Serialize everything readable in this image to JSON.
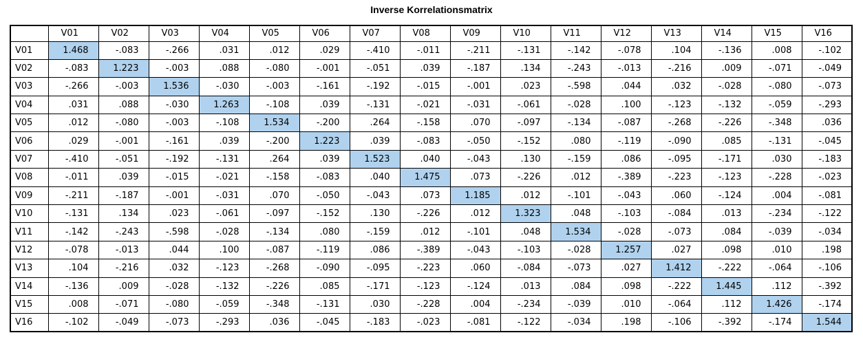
{
  "title": "Inverse Korrelationsmatrix",
  "colors": {
    "diagonal_highlight": "#b0d2ee",
    "border": "#000000",
    "background": "#ffffff"
  },
  "variables": [
    "V01",
    "V02",
    "V03",
    "V04",
    "V05",
    "V06",
    "V07",
    "V08",
    "V09",
    "V10",
    "V11",
    "V12",
    "V13",
    "V14",
    "V15",
    "V16"
  ],
  "rows": [
    [
      "1.468",
      "-.083",
      "-.266",
      ".031",
      ".012",
      ".029",
      "-.410",
      "-.011",
      "-.211",
      "-.131",
      "-.142",
      "-.078",
      ".104",
      "-.136",
      ".008",
      "-.102"
    ],
    [
      "-.083",
      "1.223",
      "-.003",
      ".088",
      "-.080",
      "-.001",
      "-.051",
      ".039",
      "-.187",
      ".134",
      "-.243",
      "-.013",
      "-.216",
      ".009",
      "-.071",
      "-.049"
    ],
    [
      "-.266",
      "-.003",
      "1.536",
      "-.030",
      "-.003",
      "-.161",
      "-.192",
      "-.015",
      "-.001",
      ".023",
      "-.598",
      ".044",
      ".032",
      "-.028",
      "-.080",
      "-.073"
    ],
    [
      ".031",
      ".088",
      "-.030",
      "1.263",
      "-.108",
      ".039",
      "-.131",
      "-.021",
      "-.031",
      "-.061",
      "-.028",
      ".100",
      "-.123",
      "-.132",
      "-.059",
      "-.293"
    ],
    [
      ".012",
      "-.080",
      "-.003",
      "-.108",
      "1.534",
      "-.200",
      ".264",
      "-.158",
      ".070",
      "-.097",
      "-.134",
      "-.087",
      "-.268",
      "-.226",
      "-.348",
      ".036"
    ],
    [
      ".029",
      "-.001",
      "-.161",
      ".039",
      "-.200",
      "1.223",
      ".039",
      "-.083",
      "-.050",
      "-.152",
      ".080",
      "-.119",
      "-.090",
      ".085",
      "-.131",
      "-.045"
    ],
    [
      "-.410",
      "-.051",
      "-.192",
      "-.131",
      ".264",
      ".039",
      "1.523",
      ".040",
      "-.043",
      ".130",
      "-.159",
      ".086",
      "-.095",
      "-.171",
      ".030",
      "-.183"
    ],
    [
      "-.011",
      ".039",
      "-.015",
      "-.021",
      "-.158",
      "-.083",
      ".040",
      "1.475",
      ".073",
      "-.226",
      ".012",
      "-.389",
      "-.223",
      "-.123",
      "-.228",
      "-.023"
    ],
    [
      "-.211",
      "-.187",
      "-.001",
      "-.031",
      ".070",
      "-.050",
      "-.043",
      ".073",
      "1.185",
      ".012",
      "-.101",
      "-.043",
      ".060",
      "-.124",
      ".004",
      "-.081"
    ],
    [
      "-.131",
      ".134",
      ".023",
      "-.061",
      "-.097",
      "-.152",
      ".130",
      "-.226",
      ".012",
      "1.323",
      ".048",
      "-.103",
      "-.084",
      ".013",
      "-.234",
      "-.122"
    ],
    [
      "-.142",
      "-.243",
      "-.598",
      "-.028",
      "-.134",
      ".080",
      "-.159",
      ".012",
      "-.101",
      ".048",
      "1.534",
      "-.028",
      "-.073",
      ".084",
      "-.039",
      "-.034"
    ],
    [
      "-.078",
      "-.013",
      ".044",
      ".100",
      "-.087",
      "-.119",
      ".086",
      "-.389",
      "-.043",
      "-.103",
      "-.028",
      "1.257",
      ".027",
      ".098",
      ".010",
      ".198"
    ],
    [
      ".104",
      "-.216",
      ".032",
      "-.123",
      "-.268",
      "-.090",
      "-.095",
      "-.223",
      ".060",
      "-.084",
      "-.073",
      ".027",
      "1.412",
      "-.222",
      "-.064",
      "-.106"
    ],
    [
      "-.136",
      ".009",
      "-.028",
      "-.132",
      "-.226",
      ".085",
      "-.171",
      "-.123",
      "-.124",
      ".013",
      ".084",
      ".098",
      "-.222",
      "1.445",
      ".112",
      "-.392"
    ],
    [
      ".008",
      "-.071",
      "-.080",
      "-.059",
      "-.348",
      "-.131",
      ".030",
      "-.228",
      ".004",
      "-.234",
      "-.039",
      ".010",
      "-.064",
      ".112",
      "1.426",
      "-.174"
    ],
    [
      "-.102",
      "-.049",
      "-.073",
      "-.293",
      ".036",
      "-.045",
      "-.183",
      "-.023",
      "-.081",
      "-.122",
      "-.034",
      ".198",
      "-.106",
      "-.392",
      "-.174",
      "1.544"
    ]
  ]
}
